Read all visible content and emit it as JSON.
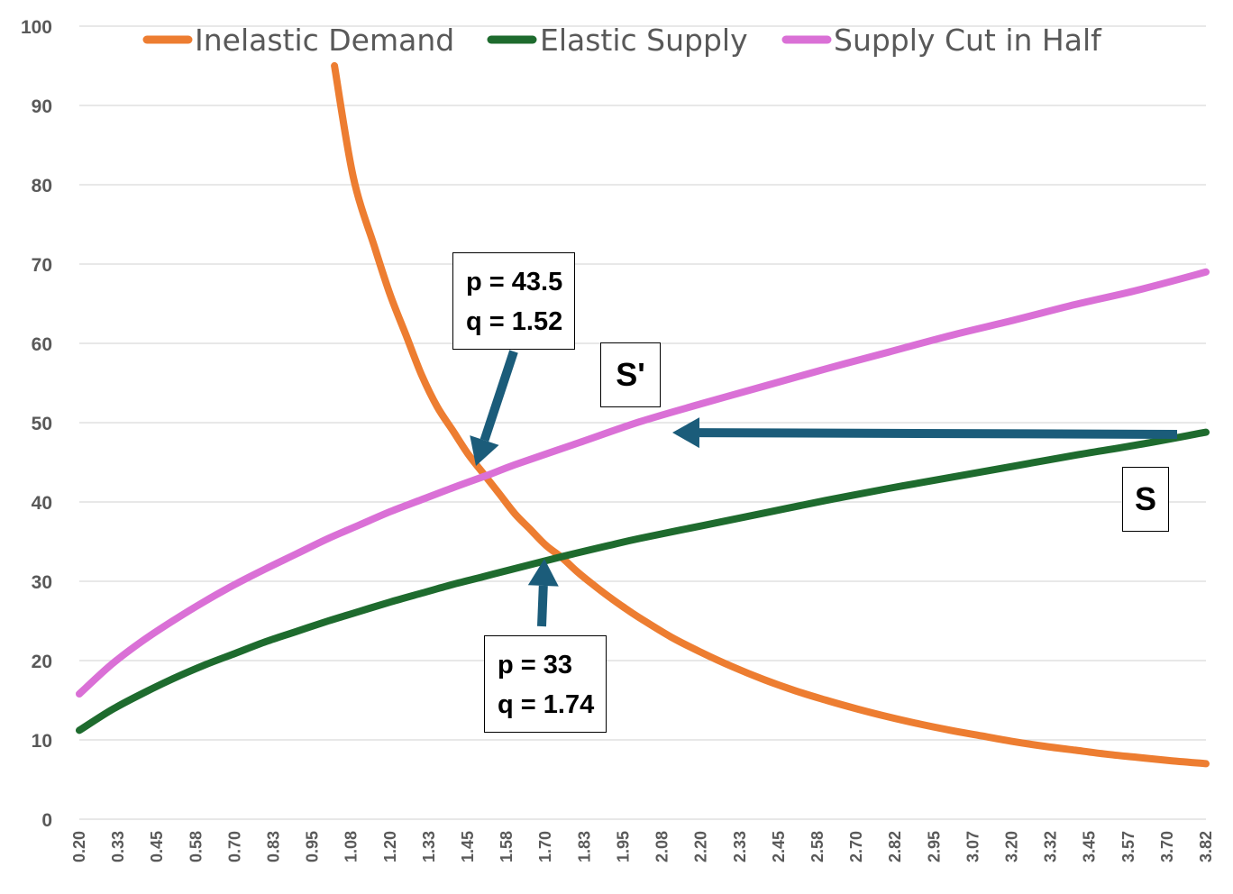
{
  "chart_data": {
    "type": "line",
    "title": "",
    "xlabel": "",
    "ylabel": "",
    "ylim": [
      0,
      100
    ],
    "xlim": [
      0.2,
      3.82
    ],
    "grid": true,
    "legend_position": "top",
    "y_ticks": [
      "0",
      "10",
      "20",
      "30",
      "40",
      "50",
      "60",
      "70",
      "80",
      "90",
      "100"
    ],
    "x_ticks": [
      "0.20",
      "0.33",
      "0.45",
      "0.58",
      "0.70",
      "0.83",
      "0.95",
      "1.08",
      "1.20",
      "1.33",
      "1.45",
      "1.58",
      "1.70",
      "1.83",
      "1.95",
      "2.08",
      "2.20",
      "2.33",
      "2.45",
      "2.58",
      "2.70",
      "2.82",
      "2.95",
      "3.07",
      "3.20",
      "3.32",
      "3.45",
      "3.57",
      "3.70",
      "3.82"
    ],
    "series": [
      {
        "name": "Inelastic Demand",
        "color": "#ED7D31",
        "x": [
          1.02,
          1.08,
          1.15,
          1.2,
          1.25,
          1.3,
          1.35,
          1.4,
          1.45,
          1.5,
          1.55,
          1.6,
          1.65,
          1.7,
          1.75,
          1.8,
          1.85,
          1.9,
          1.95,
          2.0,
          2.1,
          2.2,
          2.3,
          2.4,
          2.5,
          2.6,
          2.7,
          2.8,
          2.9,
          3.0,
          3.1,
          3.2,
          3.3,
          3.4,
          3.5,
          3.6,
          3.7,
          3.82
        ],
        "y": [
          95,
          81,
          72,
          66,
          61,
          56,
          52,
          49,
          46,
          43.5,
          41,
          38.5,
          36.5,
          34.5,
          33,
          31.2,
          29.6,
          28.1,
          26.7,
          25.4,
          23,
          21,
          19.2,
          17.6,
          16.2,
          15,
          13.9,
          12.9,
          12,
          11.2,
          10.5,
          9.8,
          9.2,
          8.7,
          8.2,
          7.8,
          7.4,
          7
        ]
      },
      {
        "name": "Elastic Supply",
        "color": "#1E6B2E",
        "x": [
          0.2,
          0.3,
          0.4,
          0.5,
          0.6,
          0.7,
          0.8,
          0.9,
          1.0,
          1.1,
          1.2,
          1.3,
          1.4,
          1.5,
          1.6,
          1.74,
          1.9,
          2.0,
          2.2,
          2.4,
          2.6,
          2.8,
          3.0,
          3.2,
          3.4,
          3.6,
          3.82
        ],
        "y": [
          11.2,
          13.7,
          15.8,
          17.7,
          19.4,
          20.9,
          22.4,
          23.7,
          25,
          26.2,
          27.4,
          28.5,
          29.6,
          30.6,
          31.6,
          33,
          34.5,
          35.4,
          37,
          38.6,
          40.2,
          41.7,
          43.1,
          44.5,
          45.9,
          47.2,
          48.8
        ]
      },
      {
        "name": "Supply Cut in Half",
        "color": "#DA70D6",
        "x": [
          0.2,
          0.3,
          0.4,
          0.5,
          0.6,
          0.7,
          0.8,
          0.9,
          1.0,
          1.1,
          1.2,
          1.3,
          1.4,
          1.52,
          1.6,
          1.8,
          2.0,
          2.2,
          2.4,
          2.6,
          2.8,
          3.0,
          3.2,
          3.4,
          3.6,
          3.82
        ],
        "y": [
          15.8,
          19.4,
          22.4,
          25,
          27.4,
          29.6,
          31.6,
          33.5,
          35.4,
          37.1,
          38.8,
          40.3,
          41.8,
          43.5,
          44.7,
          47.4,
          50.1,
          52.4,
          54.6,
          56.8,
          58.9,
          61,
          62.9,
          64.9,
          66.7,
          69
        ]
      }
    ],
    "annotations": [
      {
        "line1": "p = 43.5",
        "line2": "q = 1.52",
        "x": 1.52,
        "y": 43.5
      },
      {
        "line1": "p = 33",
        "line2": "q = 1.74",
        "x": 1.74,
        "y": 33
      }
    ],
    "curve_labels": [
      {
        "text": "S'",
        "series": "Supply Cut in Half"
      },
      {
        "text": "S",
        "series": "Elastic Supply"
      }
    ],
    "arrow_color": "#1B5C7A"
  }
}
